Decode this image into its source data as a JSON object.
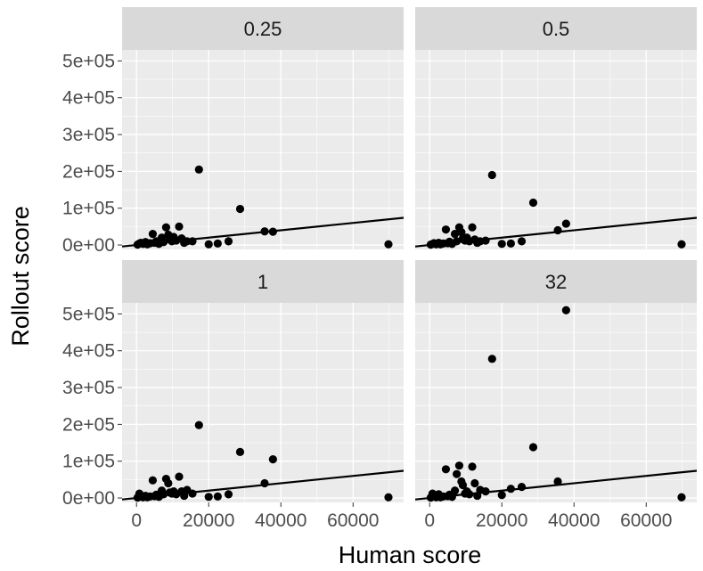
{
  "chart_data": {
    "type": "scatter",
    "facet_layout": "2x2",
    "xlabel": "Human score",
    "ylabel": "Rollout score",
    "xlim": [
      -4000,
      74000
    ],
    "ylim": [
      -12000,
      530000
    ],
    "x_ticks": [
      0,
      20000,
      40000,
      60000
    ],
    "x_tick_labels": [
      "0",
      "20000",
      "40000",
      "60000"
    ],
    "y_ticks": [
      0,
      100000,
      200000,
      300000,
      400000,
      500000
    ],
    "y_tick_labels": [
      "0e+00",
      "1e+05",
      "2e+05",
      "3e+05",
      "4e+05",
      "5e+05"
    ],
    "reference_line": {
      "slope": 1,
      "intercept": 0
    },
    "panels": [
      {
        "label": "0.25",
        "points": [
          [
            300,
            1000
          ],
          [
            800,
            4000
          ],
          [
            1200,
            6000
          ],
          [
            1800,
            3000
          ],
          [
            2500,
            8000
          ],
          [
            3000,
            2000
          ],
          [
            3800,
            5000
          ],
          [
            4500,
            30000
          ],
          [
            5000,
            6000
          ],
          [
            5500,
            10000
          ],
          [
            6200,
            3000
          ],
          [
            7000,
            20000
          ],
          [
            7500,
            8000
          ],
          [
            8200,
            48000
          ],
          [
            8800,
            28000
          ],
          [
            9200,
            15000
          ],
          [
            9800,
            10000
          ],
          [
            10300,
            22000
          ],
          [
            11000,
            12000
          ],
          [
            11800,
            50000
          ],
          [
            12500,
            18000
          ],
          [
            13200,
            6000
          ],
          [
            14000,
            10000
          ],
          [
            15500,
            10000
          ],
          [
            17300,
            205000
          ],
          [
            20000,
            2000
          ],
          [
            22500,
            4000
          ],
          [
            25500,
            10000
          ],
          [
            28700,
            98000
          ],
          [
            35500,
            37000
          ],
          [
            37800,
            36000
          ],
          [
            69800,
            2000
          ]
        ]
      },
      {
        "label": "0.5",
        "points": [
          [
            300,
            1000
          ],
          [
            800,
            3000
          ],
          [
            1200,
            5000
          ],
          [
            1800,
            2000
          ],
          [
            2500,
            6000
          ],
          [
            3000,
            2000
          ],
          [
            3800,
            4000
          ],
          [
            4500,
            42000
          ],
          [
            5000,
            5000
          ],
          [
            5500,
            9000
          ],
          [
            6200,
            3000
          ],
          [
            7000,
            30000
          ],
          [
            7500,
            10000
          ],
          [
            8200,
            48000
          ],
          [
            8800,
            35000
          ],
          [
            9200,
            18000
          ],
          [
            9800,
            12000
          ],
          [
            10300,
            20000
          ],
          [
            11000,
            10000
          ],
          [
            11800,
            48000
          ],
          [
            12500,
            15000
          ],
          [
            13200,
            6000
          ],
          [
            14000,
            10000
          ],
          [
            15500,
            12000
          ],
          [
            17300,
            190000
          ],
          [
            20000,
            3000
          ],
          [
            22500,
            4000
          ],
          [
            25500,
            10000
          ],
          [
            28700,
            115000
          ],
          [
            35500,
            40000
          ],
          [
            37800,
            58000
          ],
          [
            69800,
            2000
          ]
        ]
      },
      {
        "label": "1",
        "points": [
          [
            300,
            1000
          ],
          [
            800,
            12000
          ],
          [
            1200,
            5000
          ],
          [
            1800,
            2000
          ],
          [
            2500,
            6000
          ],
          [
            3000,
            2000
          ],
          [
            3800,
            4000
          ],
          [
            4500,
            48000
          ],
          [
            5000,
            5000
          ],
          [
            5500,
            9000
          ],
          [
            6200,
            3000
          ],
          [
            7000,
            20000
          ],
          [
            7500,
            10000
          ],
          [
            8200,
            52000
          ],
          [
            8800,
            40000
          ],
          [
            9200,
            15000
          ],
          [
            9800,
            12000
          ],
          [
            10300,
            18000
          ],
          [
            11000,
            10000
          ],
          [
            11800,
            58000
          ],
          [
            12500,
            18000
          ],
          [
            13200,
            6000
          ],
          [
            14000,
            22000
          ],
          [
            15500,
            12000
          ],
          [
            17300,
            198000
          ],
          [
            20000,
            3000
          ],
          [
            22500,
            4000
          ],
          [
            25500,
            10000
          ],
          [
            28700,
            125000
          ],
          [
            35500,
            40000
          ],
          [
            37800,
            105000
          ],
          [
            69800,
            2000
          ]
        ]
      },
      {
        "label": "32",
        "points": [
          [
            300,
            1000
          ],
          [
            800,
            12000
          ],
          [
            1200,
            5000
          ],
          [
            1800,
            2000
          ],
          [
            2500,
            10000
          ],
          [
            3000,
            2000
          ],
          [
            3800,
            4000
          ],
          [
            4500,
            78000
          ],
          [
            5000,
            5000
          ],
          [
            5500,
            9000
          ],
          [
            6200,
            3000
          ],
          [
            7000,
            20000
          ],
          [
            7500,
            65000
          ],
          [
            8200,
            88000
          ],
          [
            8800,
            45000
          ],
          [
            9200,
            35000
          ],
          [
            9800,
            12000
          ],
          [
            10300,
            18000
          ],
          [
            11000,
            10000
          ],
          [
            11800,
            85000
          ],
          [
            12500,
            40000
          ],
          [
            13200,
            6000
          ],
          [
            14000,
            22000
          ],
          [
            15500,
            18000
          ],
          [
            17300,
            378000
          ],
          [
            20000,
            8000
          ],
          [
            22500,
            25000
          ],
          [
            25500,
            30000
          ],
          [
            28700,
            138000
          ],
          [
            35500,
            45000
          ],
          [
            37800,
            510000
          ],
          [
            69800,
            2000
          ]
        ]
      }
    ]
  }
}
